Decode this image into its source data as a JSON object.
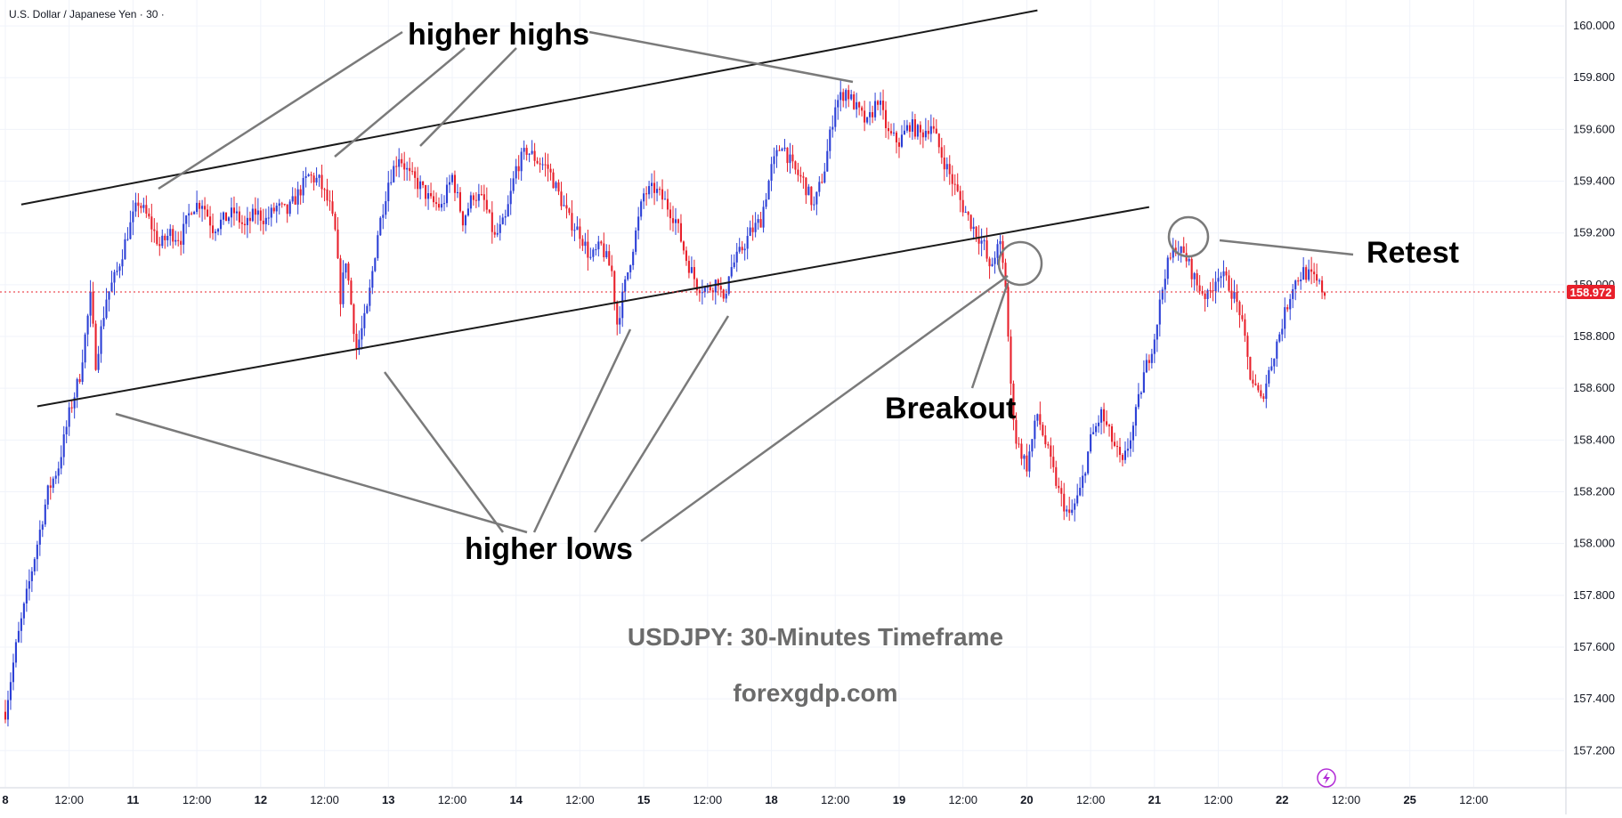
{
  "header": {
    "symbol_title": "U.S. Dollar / Japanese Yen · 30 ·"
  },
  "colors": {
    "up": "#2b3fd6",
    "down": "#e8202b",
    "price_tag": "#e8202b",
    "trendline": "#1a1a1a",
    "pointer": "#7a7a7a",
    "grid": "#f0f3fa"
  },
  "icons": {
    "bottom_right": "lightning-icon"
  },
  "annotations": {
    "higher_highs": "higher highs",
    "higher_lows": "higher lows",
    "breakout": "Breakout",
    "retest": "Retest",
    "timeframe": "USDJPY: 30-Minutes Timeframe",
    "website": "forexgdp.com"
  },
  "chart_data": {
    "type": "candlestick",
    "title": "",
    "last_price": 158.972,
    "last_price_label": "158.972",
    "ylim": [
      157.06,
      160.1
    ],
    "y_ticks": [
      {
        "value": 160.0,
        "label": "160.000"
      },
      {
        "value": 159.8,
        "label": "159.800"
      },
      {
        "value": 159.6,
        "label": "159.600"
      },
      {
        "value": 159.4,
        "label": "159.400"
      },
      {
        "value": 159.2,
        "label": "159.200"
      },
      {
        "value": 159.0,
        "label": "159.000"
      },
      {
        "value": 158.8,
        "label": "158.800"
      },
      {
        "value": 158.6,
        "label": "158.600"
      },
      {
        "value": 158.4,
        "label": "158.400"
      },
      {
        "value": 158.2,
        "label": "158.200"
      },
      {
        "value": 158.0,
        "label": "158.000"
      },
      {
        "value": 157.8,
        "label": "157.800"
      },
      {
        "value": 157.6,
        "label": "157.600"
      },
      {
        "value": 157.4,
        "label": "157.400"
      },
      {
        "value": 157.2,
        "label": "157.200"
      }
    ],
    "x_ticks": [
      {
        "label": "8",
        "t": 0,
        "bold": true
      },
      {
        "label": "12:00",
        "t": 12
      },
      {
        "label": "11",
        "t": 24,
        "bold": true
      },
      {
        "label": "12:00",
        "t": 36
      },
      {
        "label": "12",
        "t": 48,
        "bold": true
      },
      {
        "label": "12:00",
        "t": 60
      },
      {
        "label": "13",
        "t": 72,
        "bold": true
      },
      {
        "label": "12:00",
        "t": 84
      },
      {
        "label": "14",
        "t": 96,
        "bold": true
      },
      {
        "label": "12:00",
        "t": 108
      },
      {
        "label": "15",
        "t": 120,
        "bold": true
      },
      {
        "label": "12:00",
        "t": 132
      },
      {
        "label": "18",
        "t": 144,
        "bold": true
      },
      {
        "label": "12:00",
        "t": 156
      },
      {
        "label": "19",
        "t": 168,
        "bold": true
      },
      {
        "label": "12:00",
        "t": 180
      },
      {
        "label": "20",
        "t": 192,
        "bold": true
      },
      {
        "label": "12:00",
        "t": 204
      },
      {
        "label": "21",
        "t": 216,
        "bold": true
      },
      {
        "label": "12:00",
        "t": 228
      },
      {
        "label": "22",
        "t": 240,
        "bold": true
      },
      {
        "label": "12:00",
        "t": 252
      },
      {
        "label": "25",
        "t": 264,
        "bold": true
      },
      {
        "label": "12:00",
        "t": 276
      }
    ],
    "x_range": [
      -1,
      293
    ],
    "price_path": [
      [
        0,
        157.35
      ],
      [
        2,
        157.6
      ],
      [
        4,
        157.8
      ],
      [
        6,
        158.0
      ],
      [
        8,
        158.2
      ],
      [
        10,
        158.3
      ],
      [
        12,
        158.5
      ],
      [
        14,
        158.65
      ],
      [
        16,
        158.95
      ],
      [
        17,
        158.7
      ],
      [
        19,
        158.95
      ],
      [
        21,
        159.05
      ],
      [
        23,
        159.2
      ],
      [
        25,
        159.32
      ],
      [
        27,
        159.25
      ],
      [
        29,
        159.15
      ],
      [
        31,
        159.2
      ],
      [
        33,
        159.18
      ],
      [
        35,
        159.3
      ],
      [
        37,
        159.32
      ],
      [
        39,
        159.22
      ],
      [
        41,
        159.25
      ],
      [
        43,
        159.28
      ],
      [
        45,
        159.22
      ],
      [
        47,
        159.28
      ],
      [
        49,
        159.25
      ],
      [
        51,
        159.3
      ],
      [
        53,
        159.28
      ],
      [
        55,
        159.35
      ],
      [
        57,
        159.42
      ],
      [
        59,
        159.4
      ],
      [
        61,
        159.3
      ],
      [
        62,
        159.2
      ],
      [
        63,
        158.95
      ],
      [
        64,
        159.1
      ],
      [
        66,
        158.75
      ],
      [
        68,
        158.9
      ],
      [
        70,
        159.2
      ],
      [
        72,
        159.4
      ],
      [
        74,
        159.5
      ],
      [
        76,
        159.42
      ],
      [
        78,
        159.38
      ],
      [
        80,
        159.32
      ],
      [
        82,
        159.3
      ],
      [
        84,
        159.42
      ],
      [
        86,
        159.25
      ],
      [
        88,
        159.35
      ],
      [
        90,
        159.32
      ],
      [
        92,
        159.18
      ],
      [
        94,
        159.25
      ],
      [
        96,
        159.45
      ],
      [
        98,
        159.52
      ],
      [
        100,
        159.48
      ],
      [
        102,
        159.45
      ],
      [
        104,
        159.35
      ],
      [
        106,
        159.25
      ],
      [
        108,
        159.2
      ],
      [
        110,
        159.1
      ],
      [
        112,
        159.15
      ],
      [
        114,
        159.05
      ],
      [
        115,
        158.85
      ],
      [
        116,
        158.95
      ],
      [
        118,
        159.15
      ],
      [
        120,
        159.35
      ],
      [
        122,
        159.37
      ],
      [
        124,
        159.32
      ],
      [
        126,
        159.25
      ],
      [
        128,
        159.1
      ],
      [
        130,
        159.0
      ],
      [
        132,
        158.98
      ],
      [
        134,
        159.02
      ],
      [
        135,
        158.92
      ],
      [
        136,
        159.05
      ],
      [
        138,
        159.12
      ],
      [
        140,
        159.2
      ],
      [
        142,
        159.25
      ],
      [
        144,
        159.45
      ],
      [
        146,
        159.55
      ],
      [
        148,
        159.45
      ],
      [
        150,
        159.4
      ],
      [
        152,
        159.3
      ],
      [
        154,
        159.45
      ],
      [
        156,
        159.7
      ],
      [
        158,
        159.75
      ],
      [
        160,
        159.68
      ],
      [
        162,
        159.62
      ],
      [
        164,
        159.72
      ],
      [
        166,
        159.58
      ],
      [
        168,
        159.55
      ],
      [
        170,
        159.62
      ],
      [
        172,
        159.58
      ],
      [
        174,
        159.62
      ],
      [
        176,
        159.5
      ],
      [
        178,
        159.4
      ],
      [
        180,
        159.3
      ],
      [
        182,
        159.22
      ],
      [
        184,
        159.15
      ],
      [
        185,
        159.05
      ],
      [
        186,
        159.12
      ],
      [
        187,
        159.15
      ],
      [
        188,
        159.0
      ],
      [
        189,
        158.6
      ],
      [
        190,
        158.4
      ],
      [
        192,
        158.3
      ],
      [
        194,
        158.5
      ],
      [
        196,
        158.35
      ],
      [
        198,
        158.2
      ],
      [
        200,
        158.1
      ],
      [
        202,
        158.2
      ],
      [
        204,
        158.4
      ],
      [
        206,
        158.5
      ],
      [
        208,
        158.4
      ],
      [
        210,
        158.3
      ],
      [
        212,
        158.45
      ],
      [
        214,
        158.65
      ],
      [
        216,
        158.8
      ],
      [
        218,
        159.05
      ],
      [
        220,
        159.15
      ],
      [
        222,
        159.1
      ],
      [
        224,
        159.0
      ],
      [
        226,
        158.95
      ],
      [
        228,
        159.05
      ],
      [
        230,
        159.0
      ],
      [
        232,
        158.9
      ],
      [
        234,
        158.65
      ],
      [
        236,
        158.55
      ],
      [
        238,
        158.7
      ],
      [
        240,
        158.85
      ],
      [
        242,
        159.0
      ],
      [
        244,
        159.05
      ],
      [
        246,
        159.02
      ],
      [
        248,
        158.97
      ]
    ],
    "trendlines": [
      {
        "name": "upper-channel-line",
        "t1": 3,
        "p1": 159.31,
        "t2": 194,
        "p2": 160.06
      },
      {
        "name": "lower-channel-line",
        "t1": 6,
        "p1": 158.53,
        "t2": 215,
        "p2": 159.3
      }
    ]
  }
}
